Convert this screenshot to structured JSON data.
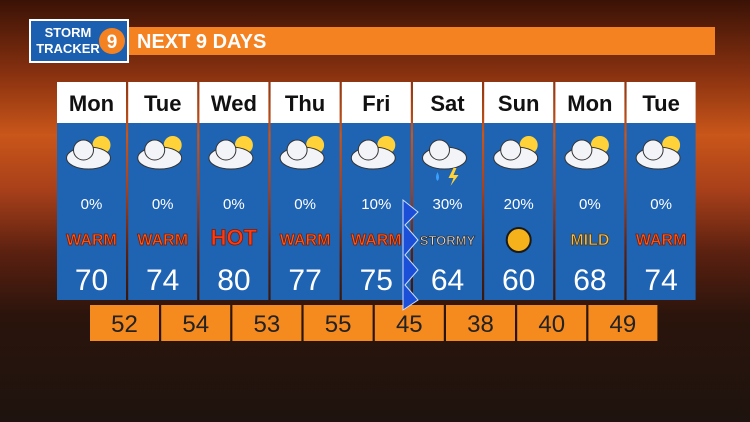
{
  "header": {
    "logo_line1": "STORM",
    "logo_line2": "TRACKER",
    "logo_number": "9",
    "title": "NEXT 9 DAYS"
  },
  "days": [
    {
      "day": "Mon",
      "precip": "0%",
      "label": "WARM",
      "high": 70
    },
    {
      "day": "Tue",
      "precip": "0%",
      "label": "WARM",
      "high": 74
    },
    {
      "day": "Wed",
      "precip": "0%",
      "label": "HOT",
      "high": 80
    },
    {
      "day": "Thu",
      "precip": "0%",
      "label": "WARM",
      "high": 77
    },
    {
      "day": "Fri",
      "precip": "10%",
      "label": "WARM",
      "high": 75
    },
    {
      "day": "Sat",
      "precip": "30%",
      "label": "STORMY",
      "high": 64
    },
    {
      "day": "Sun",
      "precip": "20%",
      "high": 60
    },
    {
      "day": "Mon",
      "precip": "0%",
      "label": "MILD",
      "high": 68
    },
    {
      "day": "Tue",
      "precip": "0%",
      "label": "WARM",
      "high": 74
    }
  ],
  "lows": [
    52,
    54,
    53,
    55,
    45,
    38,
    40,
    49
  ]
}
